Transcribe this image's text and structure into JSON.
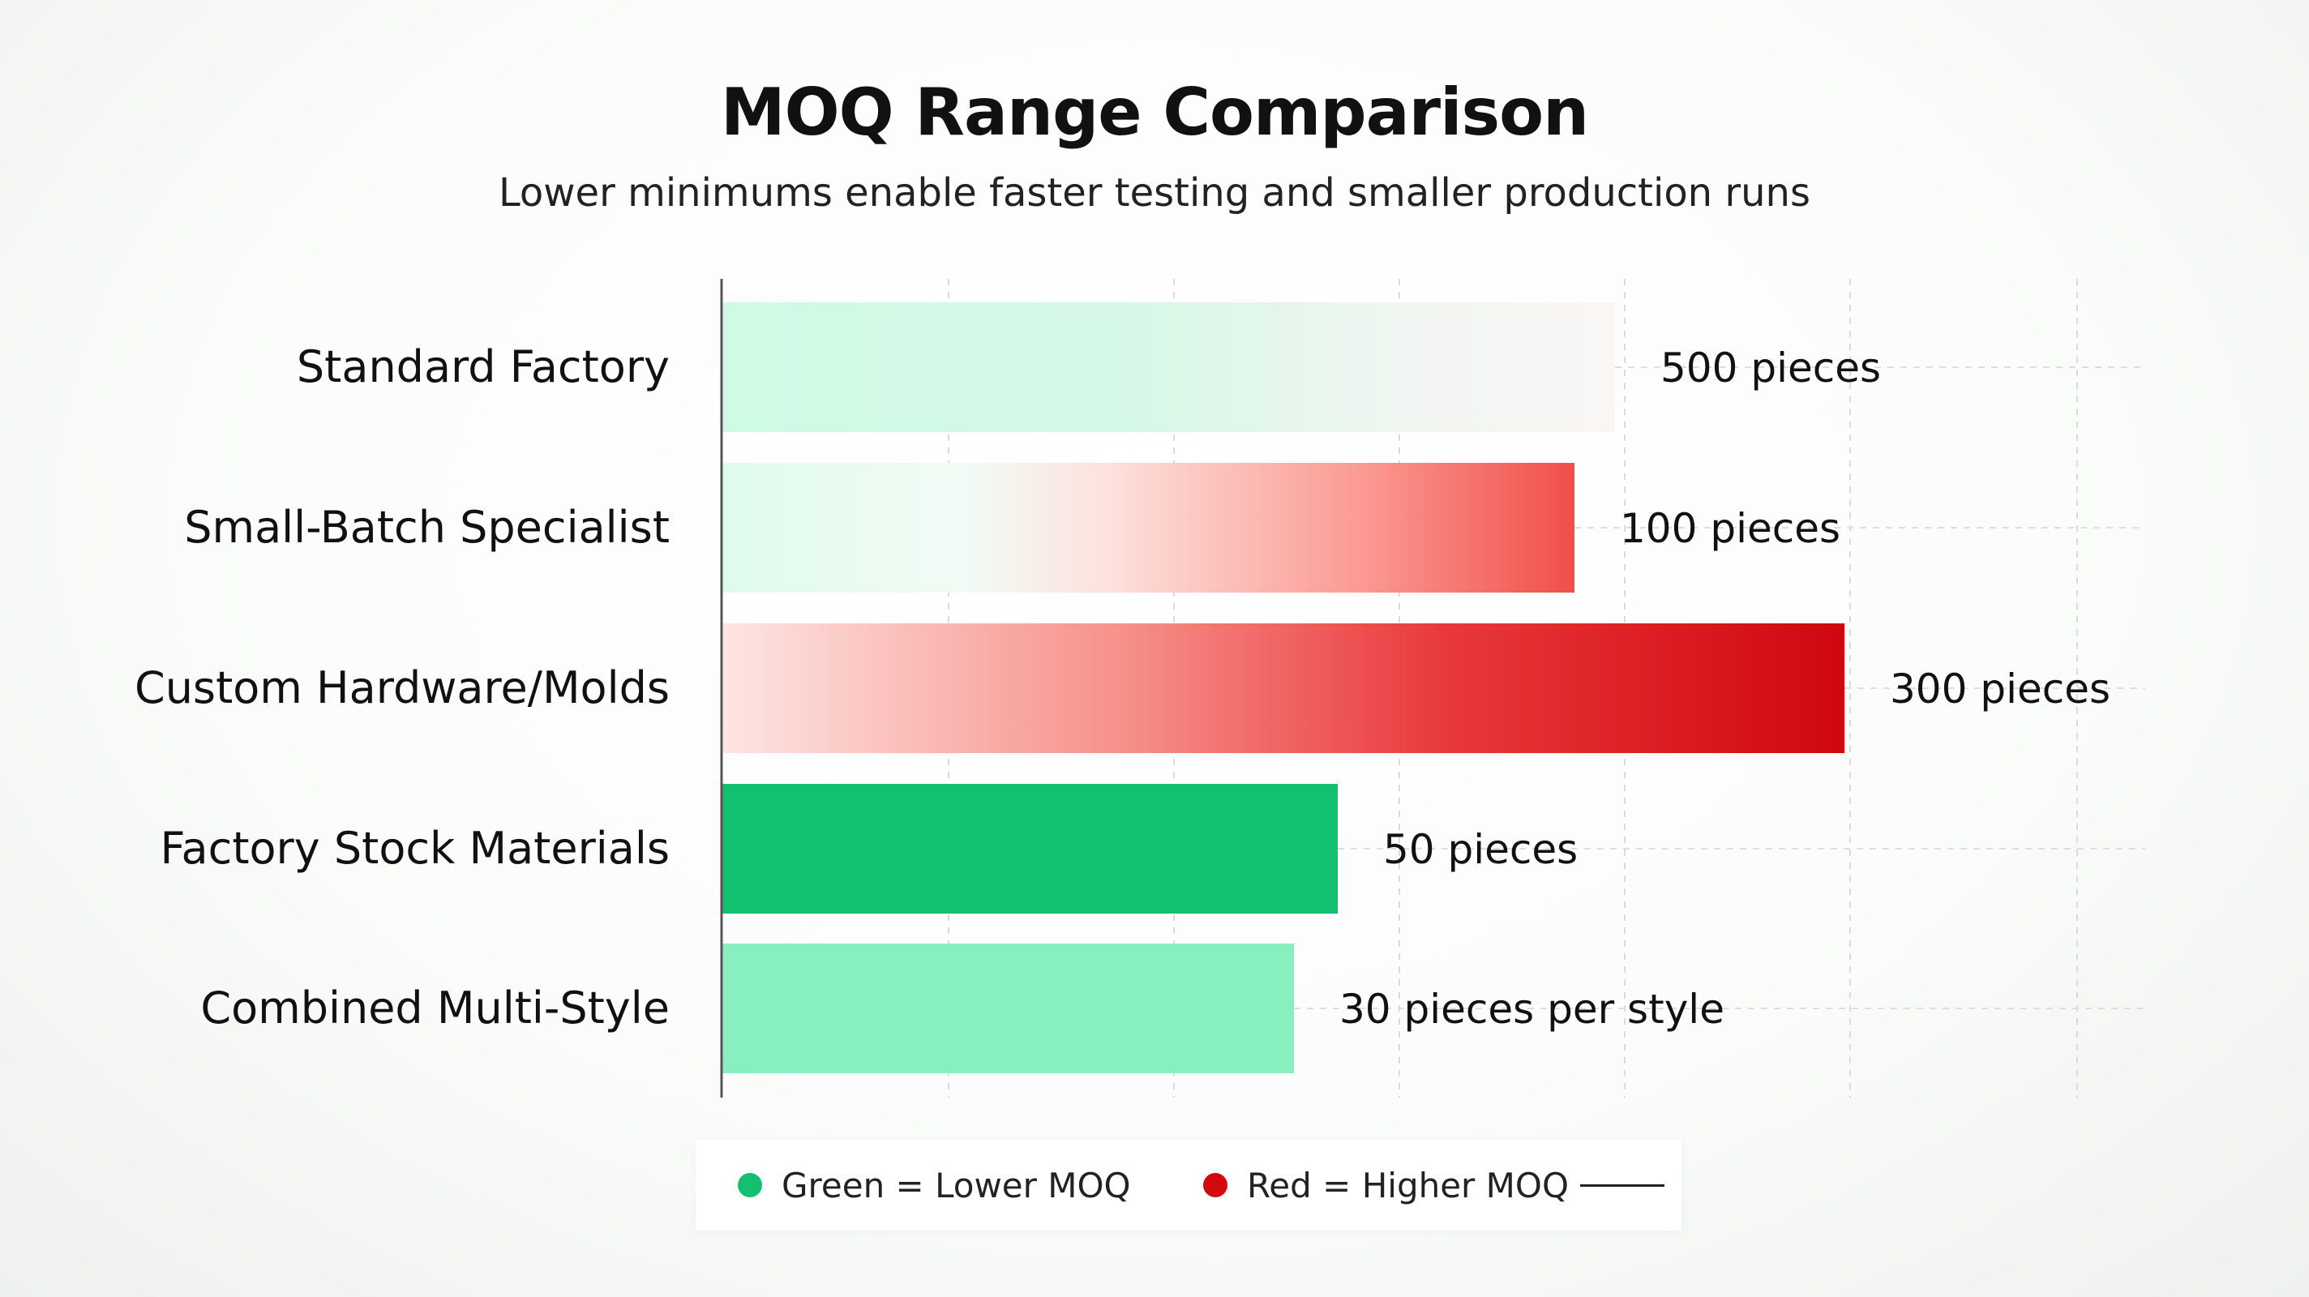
{
  "chart_data": {
    "type": "bar",
    "orientation": "horizontal",
    "title": "MOQ Range Comparison",
    "subtitle": "Lower minimums enable faster testing and smaller production runs",
    "categories": [
      "Standard Factory",
      "Small-Batch Specialist",
      "Custom Hardware/Molds",
      "Factory Stock Materials",
      "Combined Multi-Style"
    ],
    "values": [
      500,
      100,
      300,
      50,
      30
    ],
    "value_labels": [
      "500 pieces",
      "100 pieces",
      "300 pieces",
      "50 pieces",
      "30 pieces per style"
    ],
    "bar_styles": [
      "fade-light",
      "green-to-red",
      "pink-to-red",
      "green",
      "light-green"
    ],
    "grid": true,
    "legend_placement": "bottom"
  },
  "legend": {
    "items": [
      {
        "label": "Green = Lower MOQ",
        "color": "#12c06f"
      },
      {
        "label": "Red = Higher MOQ",
        "color": "#d20a10"
      }
    ]
  },
  "colors": {
    "green": "#12c06f",
    "light_green": "#88efbe",
    "pale_green": "#cffbe5",
    "red": "#d20a10",
    "pale_red": "#fde6e3"
  }
}
